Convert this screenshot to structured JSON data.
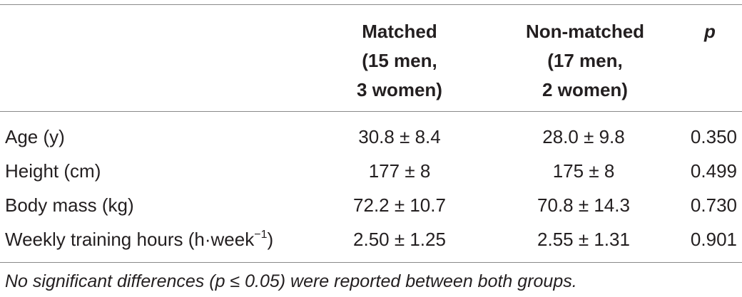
{
  "table": {
    "headers": {
      "matched": [
        "Matched",
        "(15 men,",
        "3 women)"
      ],
      "non_matched": [
        "Non-matched",
        "(17 men,",
        "2 women)"
      ],
      "p": "p"
    },
    "rows": [
      {
        "label": "Age (y)",
        "label_sup": "",
        "label_suffix": "",
        "matched": "30.8 ± 8.4",
        "non_matched": "28.0 ± 9.8",
        "p": "0.350"
      },
      {
        "label": "Height (cm)",
        "label_sup": "",
        "label_suffix": "",
        "matched": "177 ± 8",
        "non_matched": "175 ± 8",
        "p": "0.499"
      },
      {
        "label": "Body mass (kg)",
        "label_sup": "",
        "label_suffix": "",
        "matched": "72.2 ± 10.7",
        "non_matched": "70.8 ± 14.3",
        "p": "0.730"
      },
      {
        "label": "Weekly training hours (h·week",
        "label_sup": "−1",
        "label_suffix": ")",
        "matched": "2.50 ± 1.25",
        "non_matched": "2.55 ± 1.31",
        "p": "0.901"
      }
    ],
    "footnote": "No significant differences (p ≤  0.05) were reported between both groups."
  }
}
